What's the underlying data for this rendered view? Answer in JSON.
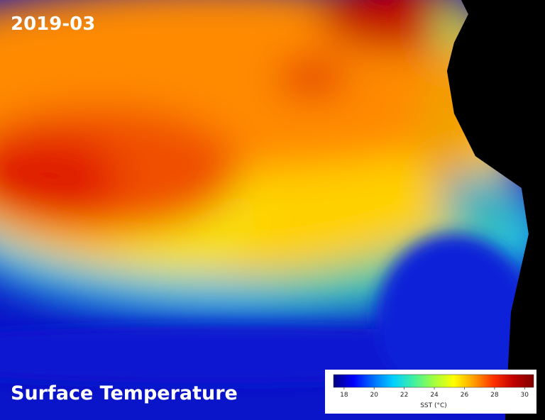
{
  "date_label": "2019-03",
  "title": "Surface Temperature",
  "colorbar": {
    "label": "SST (°C)",
    "range": [
      17.3,
      30.6
    ],
    "ticks": [
      18,
      20,
      22,
      24,
      26,
      28,
      30
    ],
    "colormap": [
      "#000080",
      "#0000ff",
      "#0070ff",
      "#00d0ff",
      "#40f0a0",
      "#a0ff40",
      "#ffff00",
      "#ffa000",
      "#ff3000",
      "#c00000",
      "#800000"
    ]
  }
}
